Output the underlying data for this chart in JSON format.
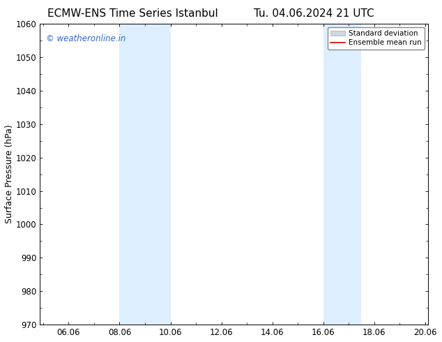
{
  "title_left": "ECMW-ENS Time Series Istanbul",
  "title_right": "Tu. 04.06.2024 21 UTC",
  "ylabel": "Surface Pressure (hPa)",
  "ylim": [
    970,
    1060
  ],
  "yticks": [
    970,
    980,
    990,
    1000,
    1010,
    1020,
    1030,
    1040,
    1050,
    1060
  ],
  "xlim": [
    4.875,
    20.125
  ],
  "xtick_labels": [
    "06.06",
    "08.06",
    "10.06",
    "12.06",
    "14.06",
    "16.06",
    "18.06",
    "20.06"
  ],
  "xtick_positions": [
    6,
    8,
    10,
    12,
    14,
    16,
    18,
    20
  ],
  "shaded_bands": [
    {
      "x_start": 8.0,
      "x_end": 10.0
    },
    {
      "x_start": 16.0,
      "x_end": 17.5
    }
  ],
  "shade_color": "#ddeeff",
  "background_color": "#ffffff",
  "watermark_text": "© weatheronline.in",
  "watermark_color": "#3366cc",
  "legend_entries": [
    {
      "label": "Standard deviation",
      "color": "#cccccc",
      "lw": 6,
      "type": "bar"
    },
    {
      "label": "Ensemble mean run",
      "color": "#cc0000",
      "lw": 1.5,
      "type": "line"
    }
  ],
  "title_fontsize": 11,
  "tick_fontsize": 8.5,
  "ylabel_fontsize": 9,
  "watermark_fontsize": 8.5
}
